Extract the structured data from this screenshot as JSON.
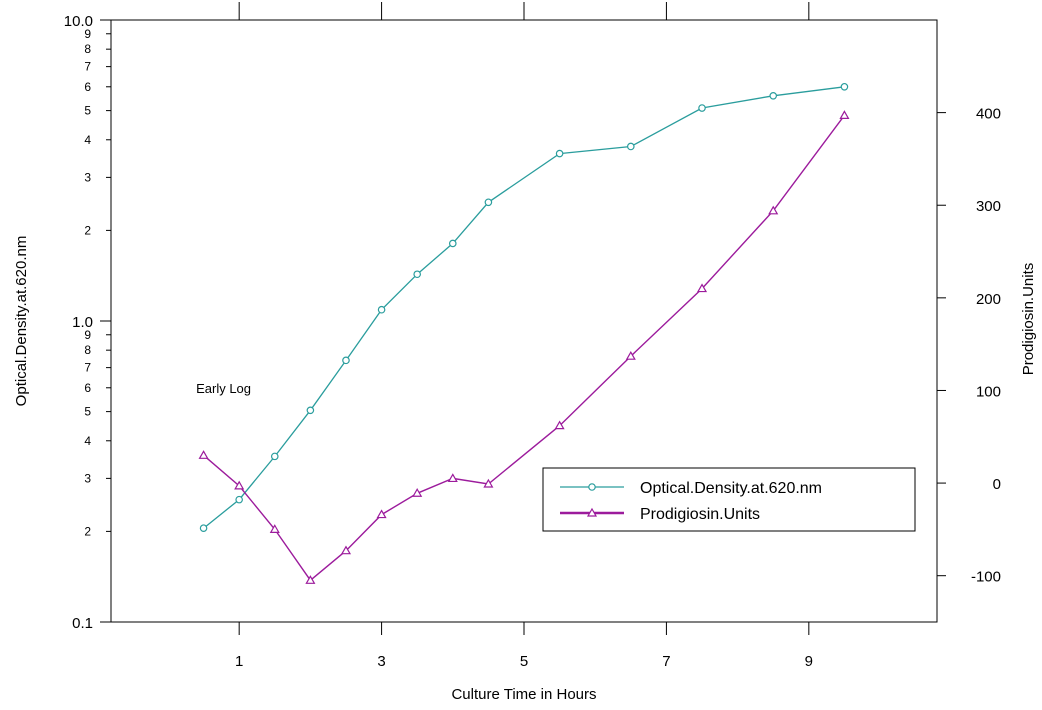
{
  "chart_data": {
    "type": "line",
    "xlabel": "Culture Time in Hours",
    "ylabel_left": "Optical.Density.at.620.nm",
    "ylabel_right": "Prodigiosin.Units",
    "xlim": [
      -0.8,
      10.8
    ],
    "ylim_left": [
      0.1,
      10.0
    ],
    "yscale_left": "log",
    "ylim_right": [
      -150,
      500
    ],
    "x_ticks": [
      "1",
      "3",
      "5",
      "7",
      "9"
    ],
    "x_top_ticks": [
      1,
      3,
      5,
      7,
      9
    ],
    "y_left_major_ticks": [
      "0.1",
      "1.0",
      "10.0"
    ],
    "y_left_minor_ticks": [
      "2",
      "3",
      "4",
      "5",
      "6",
      "7",
      "8",
      "9"
    ],
    "y_right_ticks": [
      "-100",
      "0",
      "100",
      "200",
      "300",
      "400"
    ],
    "annotation": {
      "text": "Early Log",
      "x": 0.5,
      "y_left": 0.6
    },
    "legend_position": "lower-right",
    "grid": false,
    "series": [
      {
        "name": "Optical.Density.at.620.nm",
        "axis": "left",
        "marker": "circle",
        "color": "#2a9d9d",
        "x": [
          0.5,
          1.0,
          1.5,
          2.0,
          2.5,
          3.0,
          3.5,
          4.0,
          4.5,
          5.5,
          6.5,
          7.5,
          8.5,
          9.5
        ],
        "y": [
          0.205,
          0.255,
          0.355,
          0.505,
          0.74,
          1.09,
          1.43,
          1.81,
          2.48,
          3.6,
          3.8,
          5.1,
          5.6,
          6.0
        ]
      },
      {
        "name": "Prodigiosin.Units",
        "axis": "right",
        "marker": "triangle",
        "color": "#9c1b9c",
        "x": [
          0.5,
          1.0,
          1.5,
          2.0,
          2.5,
          3.0,
          3.5,
          4.0,
          4.5,
          5.5,
          6.5,
          7.5,
          8.5,
          9.5
        ],
        "y": [
          30,
          -3,
          -50,
          -105,
          -73,
          -34,
          -11,
          5,
          -1,
          62,
          137,
          210,
          294,
          397
        ]
      }
    ]
  }
}
